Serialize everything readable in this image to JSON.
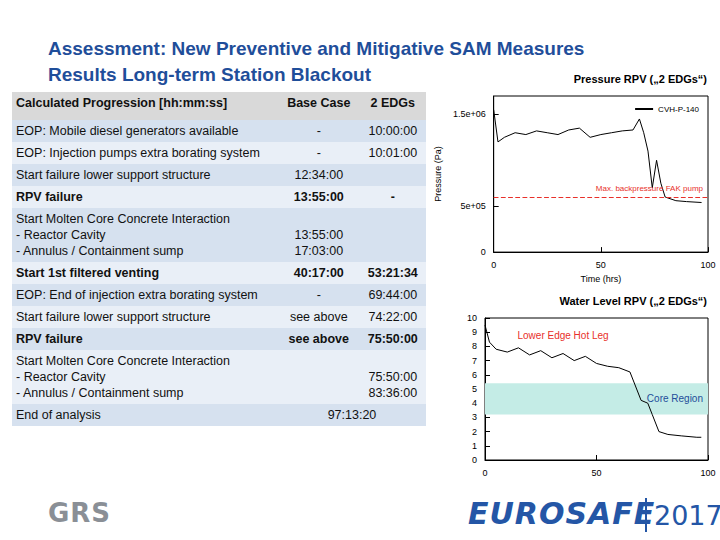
{
  "header": {
    "title_line1": "Assessment: New Preventive and Mitigative SAM Measures",
    "title_line2": "Results Long-term Station Blackout"
  },
  "table": {
    "columns": [
      "Calculated Progression [hh:mm:ss]",
      "Base Case",
      "2 EDGs"
    ],
    "rows": [
      {
        "label": "EOP: Mobile diesel generators available",
        "base": "-",
        "edgs": "10:00:00"
      },
      {
        "label": "EOP: Injection pumps extra borating system",
        "base": "-",
        "edgs": "10:01:00"
      },
      {
        "label": "Start failure lower support structure",
        "base": "12:34:00",
        "edgs": null
      },
      {
        "label": "RPV failure",
        "base": "13:55:00",
        "edgs": "-",
        "bold": true
      },
      {
        "label": "Start Molten Core Concrete Interaction\n-   Reactor Cavity\n-   Annulus / Containment sump",
        "base": "\n13:55:00\n17:03:00",
        "edgs": null
      },
      {
        "label": "Start 1st filtered venting",
        "base": "40:17:00",
        "edgs": "53:21:34",
        "bold": true
      },
      {
        "label": "EOP: End of injection extra borating system",
        "base": "-",
        "edgs": "69:44:00"
      },
      {
        "label": "Start failure lower support structure",
        "base": "see above",
        "edgs": "74:22:00"
      },
      {
        "label": "RPV failure",
        "base": "see above",
        "edgs": "75:50:00",
        "bold": true
      },
      {
        "label": "Start Molten Core Concrete Interaction\n-   Reactor Cavity\n-   Annulus / Containment sump",
        "base": null,
        "edgs": "\n75:50:00\n83:36:00"
      },
      {
        "label": "End of analysis",
        "both": "97:13:20"
      }
    ]
  },
  "footer": {
    "logo": "GRS",
    "event": "EUROSAFE",
    "year": "2017"
  },
  "chart_data": [
    {
      "type": "line",
      "title": "Pressure RPV („2 EDGs“)",
      "x_label": "Time (hrs)",
      "y_label": "Pressure (Pa)",
      "xlim": [
        0,
        100
      ],
      "xticks": [
        0,
        50,
        100
      ],
      "ylim": [
        0,
        1700000
      ],
      "yticks": [
        0,
        {
          "value": 500000,
          "label": "5e+05"
        },
        {
          "value": 1500000,
          "label": "1.5e+06"
        }
      ],
      "grid": false,
      "legend": "top-right",
      "series": [
        {
          "name": "CVH-P-140",
          "color": "#000000",
          "x": [
            0,
            2,
            5,
            10,
            15,
            20,
            25,
            30,
            35,
            40,
            45,
            50,
            55,
            60,
            65,
            68,
            70,
            72,
            74,
            76,
            78,
            80,
            85,
            90,
            97
          ],
          "values": [
            1550000,
            1200000,
            1250000,
            1300000,
            1280000,
            1320000,
            1300000,
            1280000,
            1330000,
            1350000,
            1250000,
            1280000,
            1300000,
            1320000,
            1330000,
            1450000,
            1300000,
            1100000,
            700000,
            1000000,
            750000,
            600000,
            560000,
            550000,
            540000
          ]
        }
      ],
      "annotations": [
        {
          "text": "Max. backpressure FAK pump",
          "y": 600000,
          "color": "#e8302a",
          "line_style": "dashed"
        }
      ]
    },
    {
      "type": "line",
      "title": "Water Level RPV („2 EDGs“)",
      "xlim": [
        0,
        100
      ],
      "xticks": [
        0,
        50,
        100
      ],
      "ylim": [
        0,
        10
      ],
      "yticks": [
        0,
        1,
        2,
        3,
        4,
        5,
        6,
        7,
        8,
        9,
        10
      ],
      "grid": false,
      "series": [
        {
          "color": "#000000",
          "x": [
            0,
            2,
            5,
            10,
            15,
            20,
            25,
            30,
            35,
            40,
            45,
            50,
            55,
            60,
            65,
            68,
            70,
            73,
            75,
            78,
            82,
            88,
            95,
            97
          ],
          "values": [
            9.5,
            8.3,
            7.8,
            7.6,
            7.9,
            7.4,
            7.7,
            7.2,
            7.5,
            7.0,
            7.3,
            6.8,
            6.6,
            6.5,
            6.2,
            5.0,
            4.2,
            4.0,
            3.2,
            2.0,
            1.8,
            1.7,
            1.6,
            1.6
          ]
        }
      ],
      "annotations": [
        {
          "text": "Lower Edge Hot Leg",
          "x": 35,
          "y": 8.8,
          "color": "#e8302a"
        },
        {
          "text": "Core Region",
          "y_range": [
            3.2,
            5.4
          ],
          "color": "#c4ece6"
        }
      ]
    }
  ]
}
